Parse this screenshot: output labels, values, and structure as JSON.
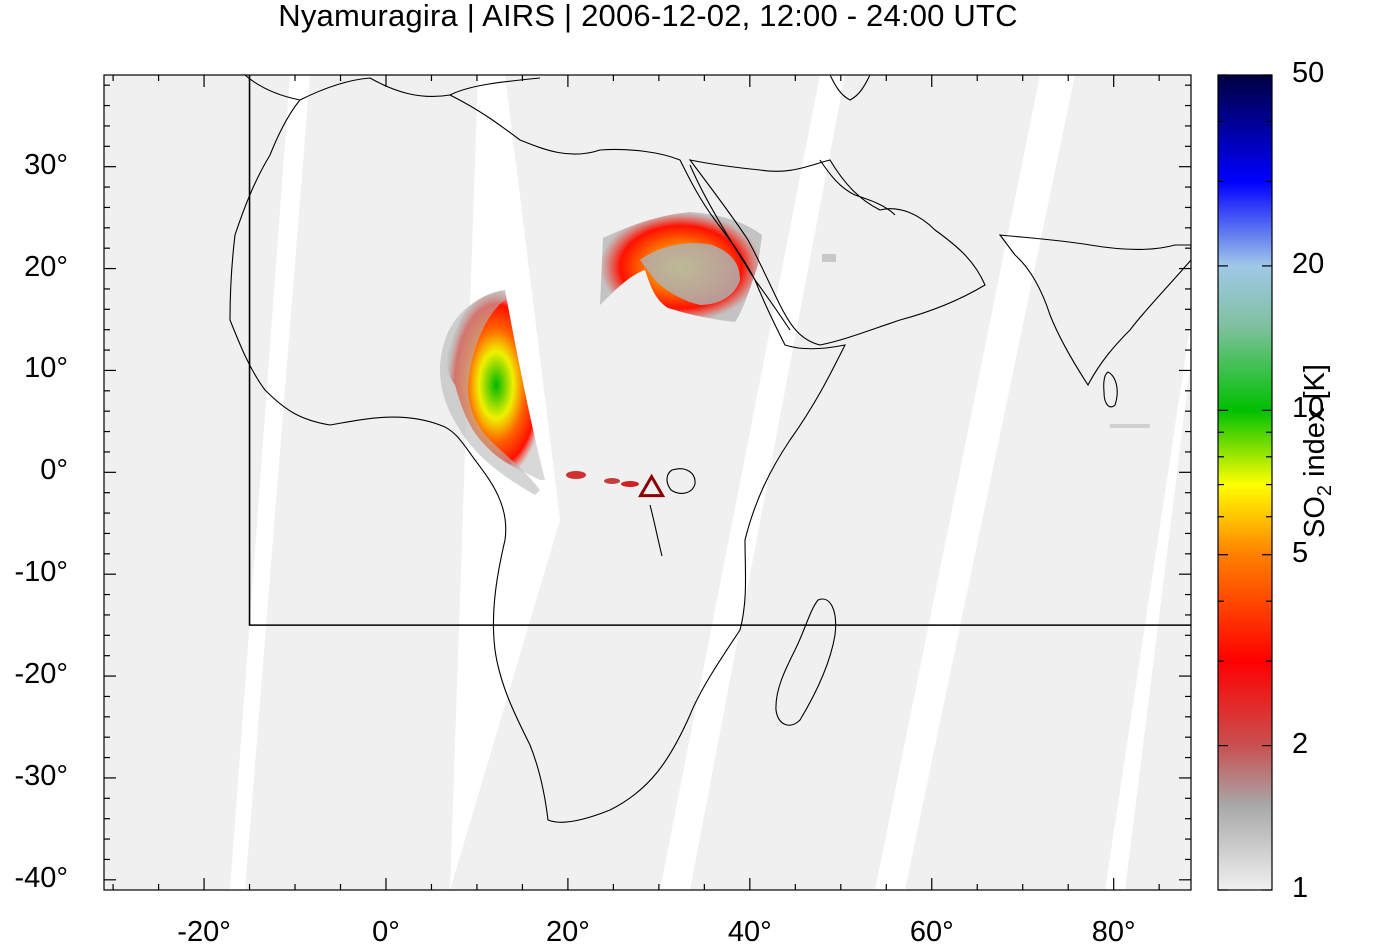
{
  "title": "Nyamuragira | AIRS | 2006-12-02, 12:00 - 24:00 UTC",
  "map": {
    "lon_range": [
      -31,
      88.5
    ],
    "lat_range": [
      -41,
      39
    ],
    "lon_ticks": [
      {
        "value": -20,
        "label": "-20°"
      },
      {
        "value": 0,
        "label": "0°"
      },
      {
        "value": 20,
        "label": "20°"
      },
      {
        "value": 40,
        "label": "40°"
      },
      {
        "value": 60,
        "label": "60°"
      },
      {
        "value": 80,
        "label": "80°"
      }
    ],
    "lat_ticks": [
      {
        "value": 30,
        "label": "30°"
      },
      {
        "value": 20,
        "label": "20°"
      },
      {
        "value": 10,
        "label": "10°"
      },
      {
        "value": 0,
        "label": "0°"
      },
      {
        "value": -10,
        "label": "-10°"
      },
      {
        "value": -20,
        "label": "-20°"
      },
      {
        "value": -30,
        "label": "-30°"
      },
      {
        "value": -40,
        "label": "-40°"
      }
    ],
    "region_box": {
      "lon_min": -15,
      "lat_min": -15
    },
    "volcano": {
      "name": "Nyamuragira",
      "lon": 29.2,
      "lat": -1.4
    },
    "colors": {
      "no_data": "#ffffff",
      "background_swath": "#f0f0f0",
      "coastline": "#000000",
      "volcano_marker": "#8b0000"
    }
  },
  "colorbar": {
    "label_main": "SO",
    "label_sub": "2",
    "label_rest": " index [K]",
    "scale": "log",
    "range": [
      1,
      50
    ],
    "ticks": [
      {
        "value": 50,
        "label": "50"
      },
      {
        "value": 20,
        "label": "20"
      },
      {
        "value": 10,
        "label": "10"
      },
      {
        "value": 5,
        "label": "5"
      },
      {
        "value": 2,
        "label": "2"
      },
      {
        "value": 1,
        "label": "1"
      }
    ],
    "stops": [
      {
        "value": 1,
        "color": "#f0f0f0"
      },
      {
        "value": 1.5,
        "color": "#a8a8a8"
      },
      {
        "value": 2,
        "color": "#c85050"
      },
      {
        "value": 3,
        "color": "#ff0000"
      },
      {
        "value": 5,
        "color": "#ff8000"
      },
      {
        "value": 7,
        "color": "#ffff00"
      },
      {
        "value": 10,
        "color": "#00c000"
      },
      {
        "value": 15,
        "color": "#80c0a0"
      },
      {
        "value": 20,
        "color": "#a0c8e8"
      },
      {
        "value": 30,
        "color": "#0000ff"
      },
      {
        "value": 50,
        "color": "#000040"
      }
    ]
  }
}
